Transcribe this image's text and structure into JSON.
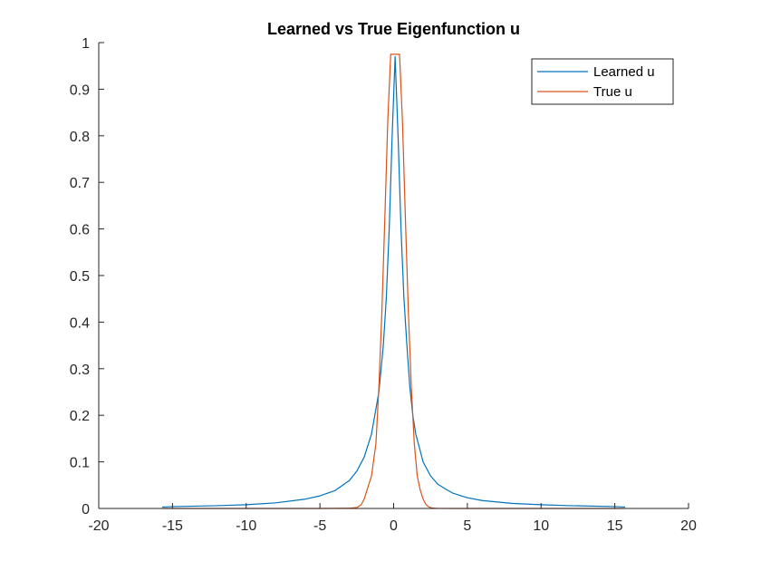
{
  "chart_data": {
    "type": "line",
    "title": "Learned vs True Eigenfunction u",
    "xlabel": "",
    "ylabel": "",
    "xlim": [
      -20,
      20
    ],
    "ylim": [
      0,
      1
    ],
    "xticks": [
      -20,
      -15,
      -10,
      -5,
      0,
      5,
      10,
      15,
      20
    ],
    "yticks": [
      0,
      0.1,
      0.2,
      0.3,
      0.4,
      0.5,
      0.6,
      0.7,
      0.8,
      0.9,
      1
    ],
    "grid": false,
    "legend_position": "top-right",
    "series": [
      {
        "name": "Learned u",
        "color": "#0072BD",
        "x": [
          -15.7,
          -15,
          -12,
          -10,
          -8,
          -6,
          -5,
          -4,
          -3,
          -2.5,
          -2,
          -1.5,
          -1,
          -0.7,
          -0.5,
          -0.3,
          -0.1,
          0.1,
          0.3,
          0.5,
          0.7,
          0.9,
          1.1,
          1.3,
          1.5,
          2,
          2.5,
          3,
          3.5,
          4,
          5,
          6,
          8,
          10,
          12,
          15,
          15.7
        ],
        "y": [
          0.003,
          0.004,
          0.006,
          0.008,
          0.012,
          0.02,
          0.027,
          0.038,
          0.06,
          0.08,
          0.11,
          0.16,
          0.25,
          0.35,
          0.45,
          0.6,
          0.8,
          0.97,
          0.8,
          0.6,
          0.45,
          0.35,
          0.26,
          0.2,
          0.16,
          0.1,
          0.07,
          0.052,
          0.042,
          0.033,
          0.023,
          0.017,
          0.011,
          0.008,
          0.006,
          0.004,
          0.003
        ]
      },
      {
        "name": "True u",
        "color": "#D95319",
        "x": [
          -15.7,
          -10,
          -5,
          -3,
          -2.5,
          -2.2,
          -2,
          -1.8,
          -1.5,
          -1.2,
          -1,
          -0.8,
          -0.6,
          -0.4,
          -0.2,
          0,
          0.2,
          0.4,
          0.6,
          0.8,
          1,
          1.2,
          1.4,
          1.6,
          1.8,
          2,
          2.2,
          2.4,
          2.6,
          2.8,
          3,
          5,
          10,
          15.7
        ],
        "y": [
          0,
          0,
          0,
          0.0005,
          0.002,
          0.008,
          0.02,
          0.04,
          0.07,
          0.14,
          0.26,
          0.42,
          0.62,
          0.83,
          0.975,
          0.975,
          0.975,
          0.975,
          0.83,
          0.62,
          0.42,
          0.26,
          0.14,
          0.07,
          0.04,
          0.02,
          0.008,
          0.003,
          0.001,
          0.0005,
          0.0002,
          0,
          0,
          0
        ]
      }
    ]
  }
}
